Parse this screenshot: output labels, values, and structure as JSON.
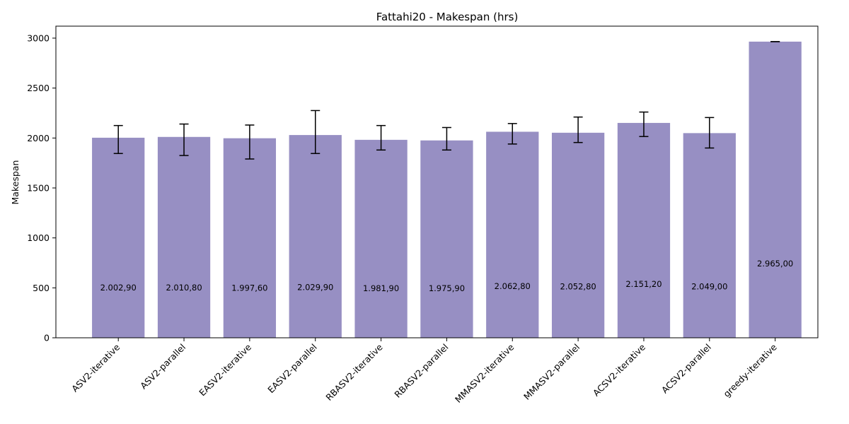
{
  "chart_data": {
    "type": "bar",
    "title": "Fattahi20 - Makespan (hrs)",
    "xlabel": "",
    "ylabel": "Makespan",
    "ylim": [
      0,
      3120
    ],
    "yticks": [
      0,
      500,
      1000,
      1500,
      2000,
      2500,
      3000
    ],
    "grid": false,
    "categories": [
      "ASV2-iterative",
      "ASV2-parallel",
      "EASV2-iterative",
      "EASV2-parallel",
      "RBASV2-iterative",
      "RBASV2-parallel",
      "MMASV2-iterative",
      "MMASV2-parallel",
      "ACSV2-iterative",
      "ACSV2-parallel",
      "greedy-iterative"
    ],
    "values": [
      2002.9,
      2010.8,
      1997.6,
      2029.9,
      1981.9,
      1975.9,
      2062.8,
      2052.8,
      2151.2,
      2049.0,
      2965.0
    ],
    "error_low": [
      1845,
      1825,
      1790,
      1845,
      1880,
      1880,
      1940,
      1955,
      2015,
      1900,
      2965
    ],
    "error_high": [
      2125,
      2140,
      2130,
      2275,
      2125,
      2105,
      2145,
      2210,
      2260,
      2205,
      2965
    ],
    "data_labels": [
      "2.002,90",
      "2.010,80",
      "1.997,60",
      "2.029,90",
      "1.981,90",
      "1.975,90",
      "2.062,80",
      "2.052,80",
      "2.151,20",
      "2.049,00",
      "2.965,00"
    ],
    "colors": {
      "bar": "#978fc3",
      "error": "#000000",
      "axis": "#000000"
    }
  }
}
